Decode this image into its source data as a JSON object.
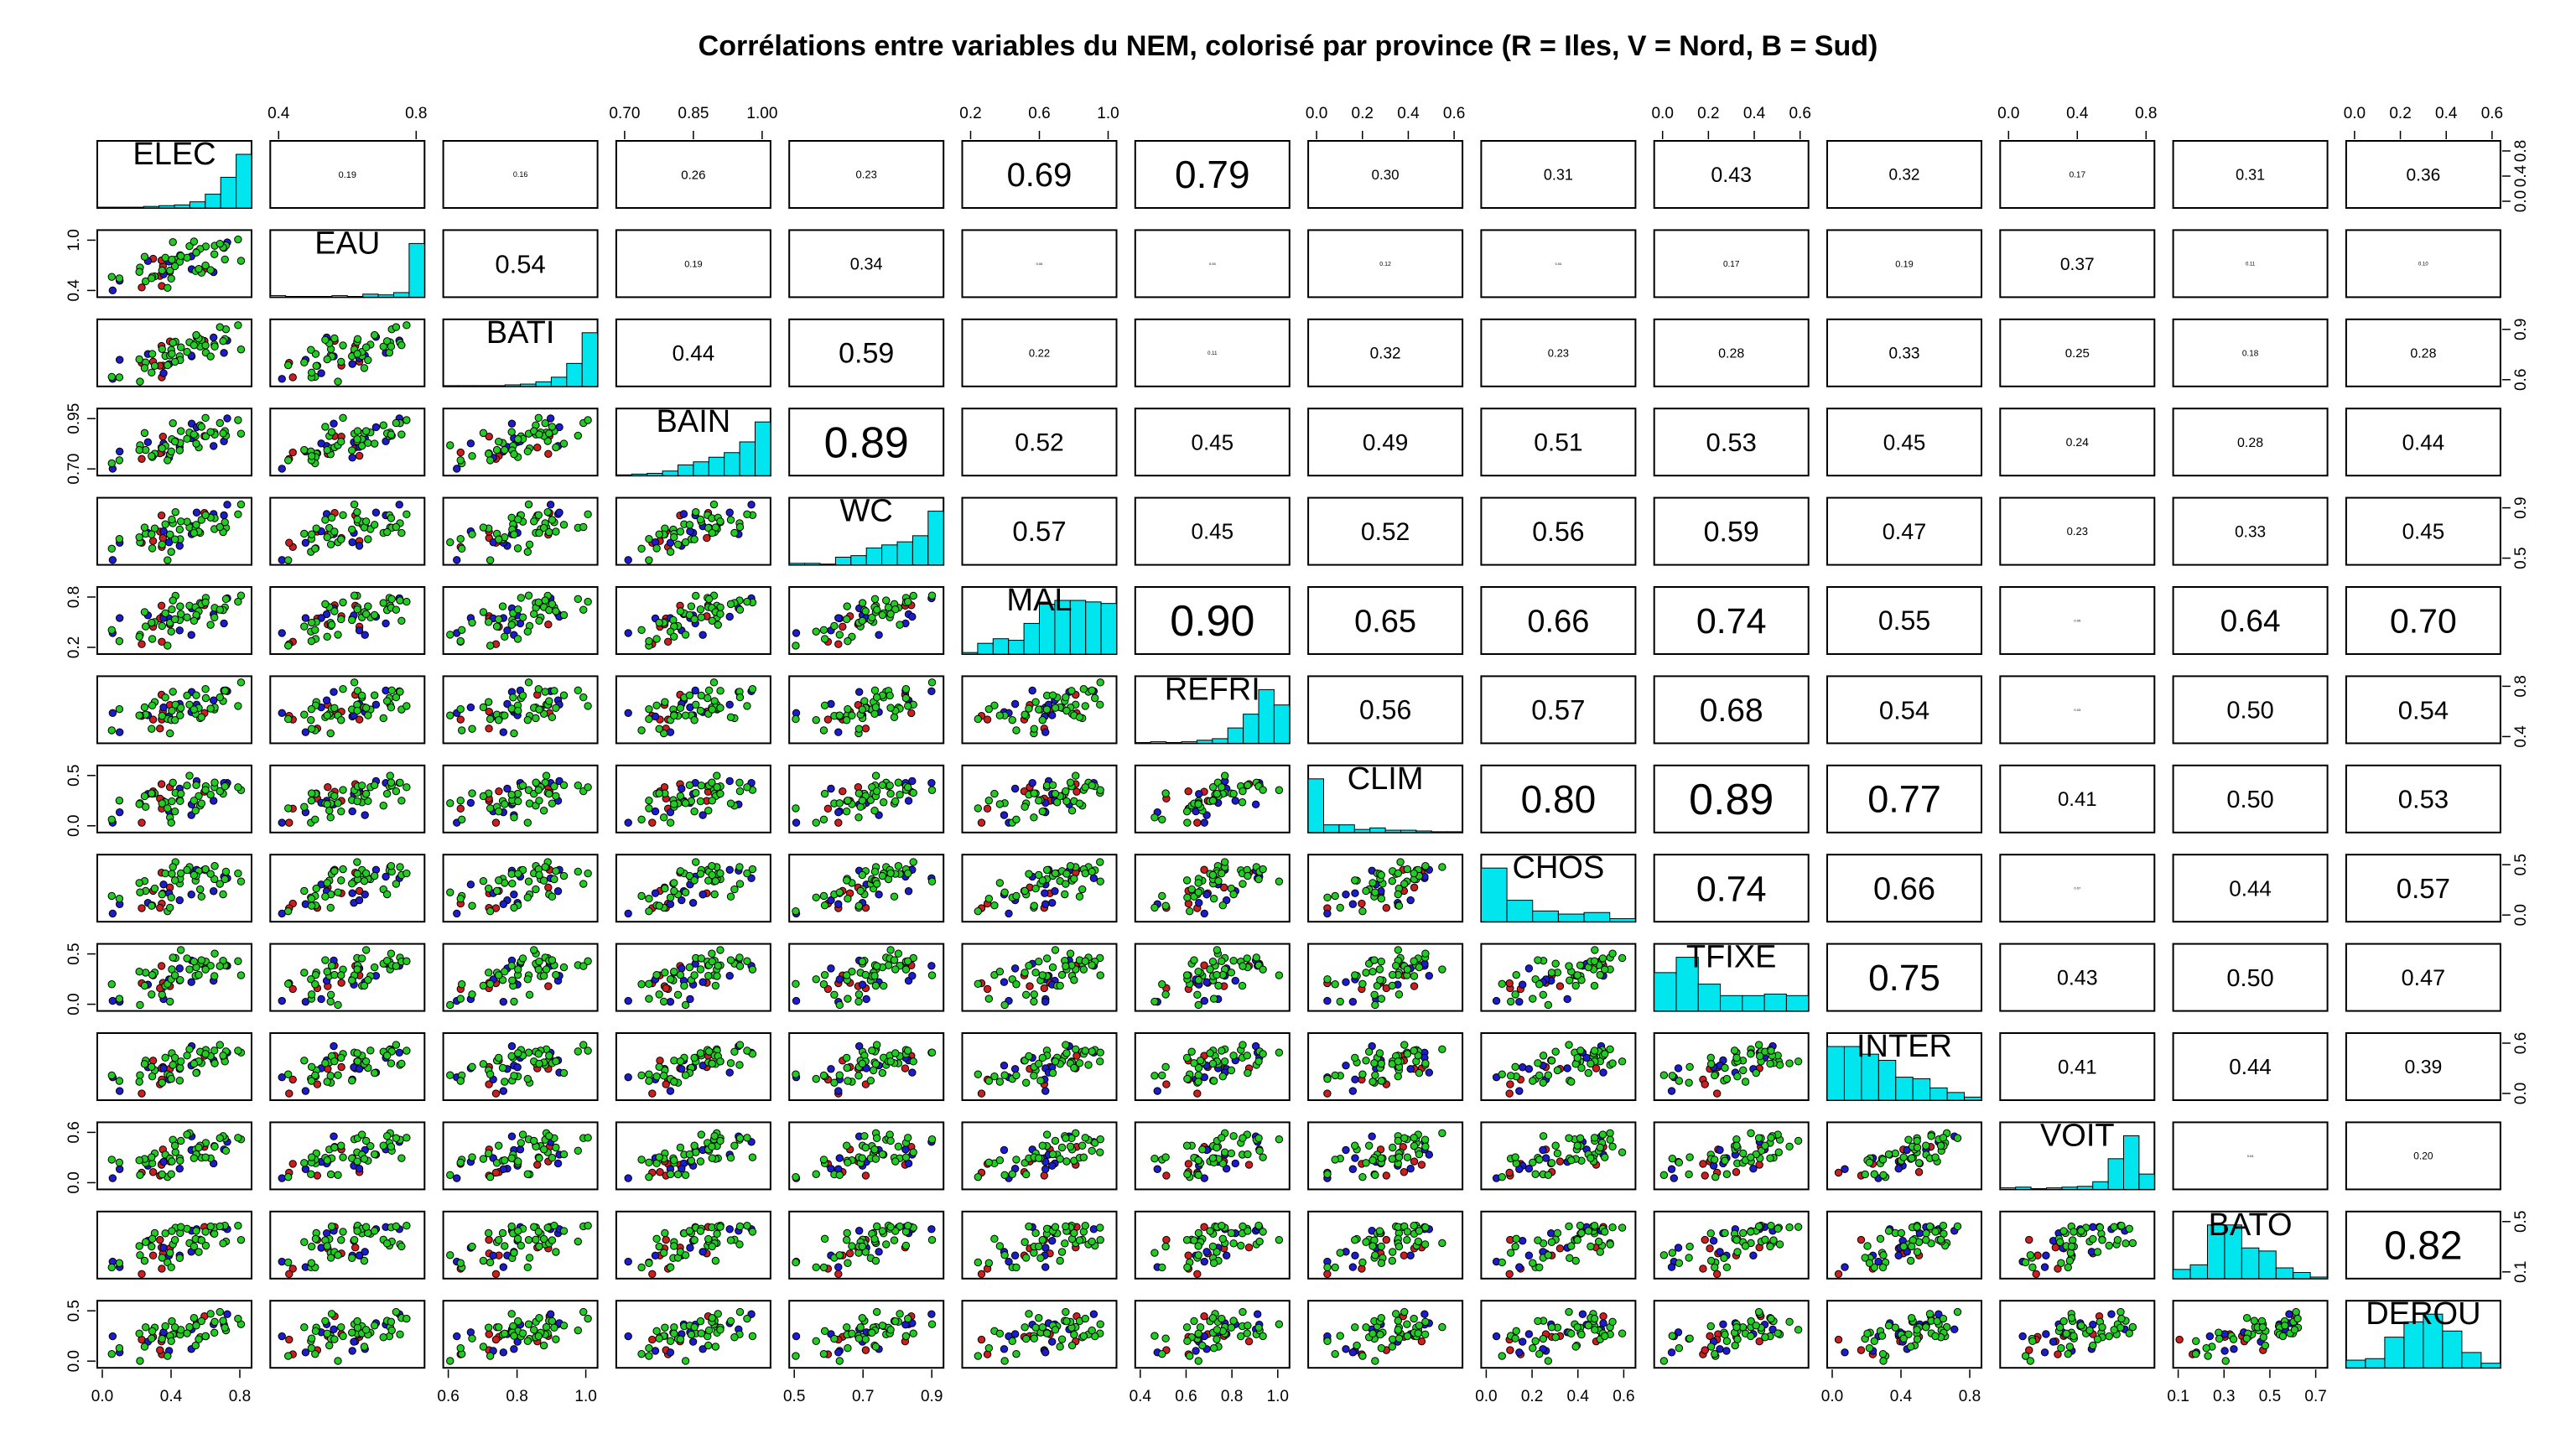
{
  "chart_data": {
    "type": "scatter-matrix",
    "title": "Corrélations entre variables du NEM, colorisé par province (R = Iles, V = Nord, B = Sud)",
    "variables": [
      "ELEC",
      "EAU",
      "BATI",
      "BAIN",
      "WC",
      "MAL",
      "REFRI",
      "CLIM",
      "CHOS",
      "TFIXE",
      "INTER",
      "VOIT",
      "BATO",
      "DEROU"
    ],
    "province_colors": {
      "Iles": "#cc1f1f",
      "Nord": "#22cc22",
      "Sud": "#1c1ccc"
    },
    "histogram_color": "#00e5ee",
    "correlations": [
      [
        "",
        "0.19",
        "0.16",
        "0.26",
        "0.23",
        "0.69",
        "0.79",
        "0.30",
        "0.31",
        "0.43",
        "0.32",
        "0.17",
        "0.31",
        "0.36"
      ],
      [
        "",
        "",
        "0.54",
        "0.19",
        "0.34",
        "0.06",
        "0.05",
        "0.12",
        "0.04",
        "0.17",
        "0.19",
        "0.37",
        "0.11",
        "0.10"
      ],
      [
        "",
        "",
        "",
        "0.44",
        "0.59",
        "0.22",
        "0.11",
        "0.32",
        "0.23",
        "0.28",
        "0.33",
        "0.25",
        "0.18",
        "0.28"
      ],
      [
        "",
        "",
        "",
        "",
        "0.89",
        "0.52",
        "0.45",
        "0.49",
        "0.51",
        "0.53",
        "0.45",
        "0.24",
        "0.28",
        "0.44"
      ],
      [
        "",
        "",
        "",
        "",
        "",
        "0.57",
        "0.45",
        "0.52",
        "0.56",
        "0.59",
        "0.47",
        "0.23",
        "0.33",
        "0.45"
      ],
      [
        "",
        "",
        "",
        "",
        "",
        "",
        "0.90",
        "0.65",
        "0.66",
        "0.74",
        "0.55",
        "0.05",
        "0.64",
        "0.70"
      ],
      [
        "",
        "",
        "",
        "",
        "",
        "",
        "",
        "0.56",
        "0.57",
        "0.68",
        "0.54",
        "0.03",
        "0.50",
        "0.54"
      ],
      [
        "",
        "",
        "",
        "",
        "",
        "",
        "",
        "",
        "0.80",
        "0.89",
        "0.77",
        "0.41",
        "0.50",
        "0.53"
      ],
      [
        "",
        "",
        "",
        "",
        "",
        "",
        "",
        "",
        "",
        "0.74",
        "0.66",
        "0.07",
        "0.44",
        "0.57"
      ],
      [
        "",
        "",
        "",
        "",
        "",
        "",
        "",
        "",
        "",
        "",
        "0.75",
        "0.43",
        "0.50",
        "0.47"
      ],
      [
        "",
        "",
        "",
        "",
        "",
        "",
        "",
        "",
        "",
        "",
        "",
        "0.41",
        "0.44",
        "0.39"
      ],
      [
        "",
        "",
        "",
        "",
        "",
        "",
        "",
        "",
        "",
        "",
        "",
        "",
        "0.04",
        "0.20"
      ],
      [
        "",
        "",
        "",
        "",
        "",
        "",
        "",
        "",
        "",
        "",
        "",
        "",
        "",
        "0.82"
      ],
      [
        "",
        "",
        "",
        "",
        "",
        "",
        "",
        "",
        "",
        "",
        "",
        "",
        "",
        ""
      ]
    ],
    "histograms": [
      [
        1,
        1,
        1,
        2,
        3,
        4,
        8,
        18,
        40,
        70
      ],
      [
        2,
        1,
        1,
        1,
        2,
        1,
        4,
        3,
        6,
        70
      ],
      [
        1,
        1,
        1,
        1,
        2,
        3,
        6,
        12,
        30,
        70
      ],
      [
        1,
        2,
        3,
        6,
        14,
        18,
        24,
        30,
        44,
        70
      ],
      [
        2,
        2,
        1,
        10,
        12,
        22,
        26,
        30,
        38,
        70
      ],
      [
        2,
        14,
        20,
        18,
        40,
        65,
        70,
        70,
        68,
        66
      ],
      [
        1,
        2,
        1,
        2,
        4,
        6,
        20,
        38,
        70,
        50
      ],
      [
        70,
        10,
        10,
        4,
        6,
        3,
        3,
        2,
        1,
        1
      ],
      [
        70,
        28,
        14,
        10,
        12,
        4
      ],
      [
        50,
        70,
        35,
        20,
        20,
        22,
        20
      ],
      [
        70,
        70,
        60,
        52,
        30,
        28,
        16,
        10,
        4
      ],
      [
        2,
        3,
        1,
        2,
        3,
        4,
        10,
        40,
        70,
        20
      ],
      [
        12,
        18,
        70,
        70,
        40,
        36,
        14,
        8,
        2
      ],
      [
        10,
        12,
        40,
        60,
        70,
        48,
        20,
        6
      ]
    ],
    "top_axis": [
      [],
      [
        "0.4",
        "0.8"
      ],
      [],
      [
        "0.70",
        "0.85",
        "1.00"
      ],
      [],
      [
        "0.2",
        "0.6",
        "1.0"
      ],
      [],
      [
        "0.0",
        "0.2",
        "0.4",
        "0.6"
      ],
      [],
      [
        "0.0",
        "0.2",
        "0.4",
        "0.6"
      ],
      [],
      [
        "0.0",
        "0.4",
        "0.8"
      ],
      [],
      [
        "0.0",
        "0.2",
        "0.4",
        "0.6"
      ]
    ],
    "bottom_axis": [
      [
        "0.0",
        "0.4",
        "0.8"
      ],
      [],
      [
        "0.6",
        "0.8",
        "1.0"
      ],
      [],
      [
        "0.5",
        "0.7",
        "0.9"
      ],
      [],
      [
        "0.4",
        "0.6",
        "0.8",
        "1.0"
      ],
      [],
      [
        "0.0",
        "0.2",
        "0.4",
        "0.6"
      ],
      [],
      [
        "0.0",
        "0.4",
        "0.8"
      ],
      [],
      [
        "0.1",
        "0.3",
        "0.5",
        "0.7"
      ],
      []
    ],
    "left_axis": [
      [],
      [
        "0.4",
        "1.0"
      ],
      [],
      [
        "0.70",
        "0.95"
      ],
      [],
      [
        "0.2",
        "0.8"
      ],
      [],
      [
        "0.0",
        "0.5"
      ],
      [],
      [
        "0.0",
        "0.5"
      ],
      [],
      [
        "0.0",
        "0.6"
      ],
      [],
      [
        "0.0",
        "0.5"
      ]
    ],
    "right_axis": [
      [
        "0.0",
        "0.4",
        "0.8"
      ],
      [],
      [
        "0.6",
        "0.9"
      ],
      [],
      [
        "0.5",
        "0.9"
      ],
      [],
      [
        "0.4",
        "0.8"
      ],
      [],
      [
        "0.0",
        "0.5"
      ],
      [],
      [
        "0.0",
        "0.6"
      ],
      [],
      [
        "0.1",
        "0.5"
      ],
      []
    ]
  }
}
